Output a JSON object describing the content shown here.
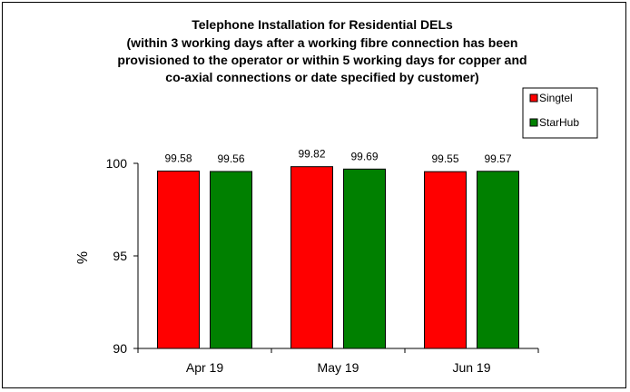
{
  "chart_data": {
    "type": "bar",
    "title_lines": [
      "Telephone Installation for Residential DELs",
      "(within 3 working days after a working fibre connection has been",
      "provisioned to the operator or within 5 working days for copper and",
      "co-axial connections or date specified by customer)"
    ],
    "categories": [
      "Apr 19",
      "May 19",
      "Jun 19"
    ],
    "series": [
      {
        "name": "Singtel",
        "values": [
          99.58,
          99.82,
          99.55
        ],
        "color": "#ff0000"
      },
      {
        "name": "StarHub",
        "values": [
          99.56,
          99.69,
          99.57
        ],
        "color": "#008000"
      }
    ],
    "data_labels": [
      [
        "99.58",
        "99.82",
        "99.55"
      ],
      [
        "99.56",
        "99.69",
        "99.57"
      ]
    ],
    "ylabel": "%",
    "xlabel": "",
    "ylim": [
      90,
      100
    ],
    "yticks": [
      "90",
      "95",
      "100"
    ],
    "grid": false,
    "legend_position": "top-right"
  }
}
